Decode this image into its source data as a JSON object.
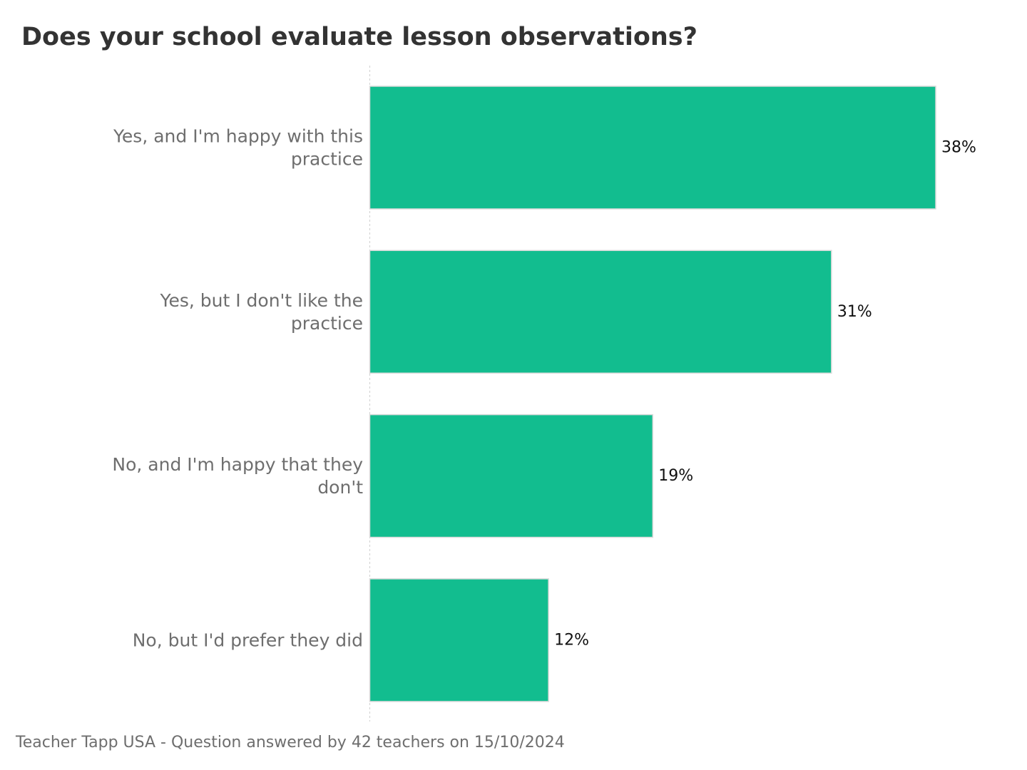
{
  "chart_data": {
    "type": "bar",
    "orientation": "horizontal",
    "title": "Does your school evaluate lesson observations?",
    "categories": [
      "Yes, and I'm happy with this practice",
      "Yes, but I don't like the practice",
      "No, and I'm happy that they don't",
      "No, but I'd prefer they did"
    ],
    "values": [
      38,
      31,
      19,
      12
    ],
    "value_labels": [
      "38%",
      "31%",
      "19%",
      "12%"
    ],
    "unit": "%",
    "xlim": [
      0,
      40
    ],
    "grid": false,
    "legend": "none",
    "bar_color": "#12bd8f",
    "bar_edge_color": "#d9d9d9",
    "axis_line_color": "#d0d0d0"
  },
  "footer": {
    "note": "Teacher Tapp USA - Question answered by 42 teachers on 15/10/2024"
  }
}
